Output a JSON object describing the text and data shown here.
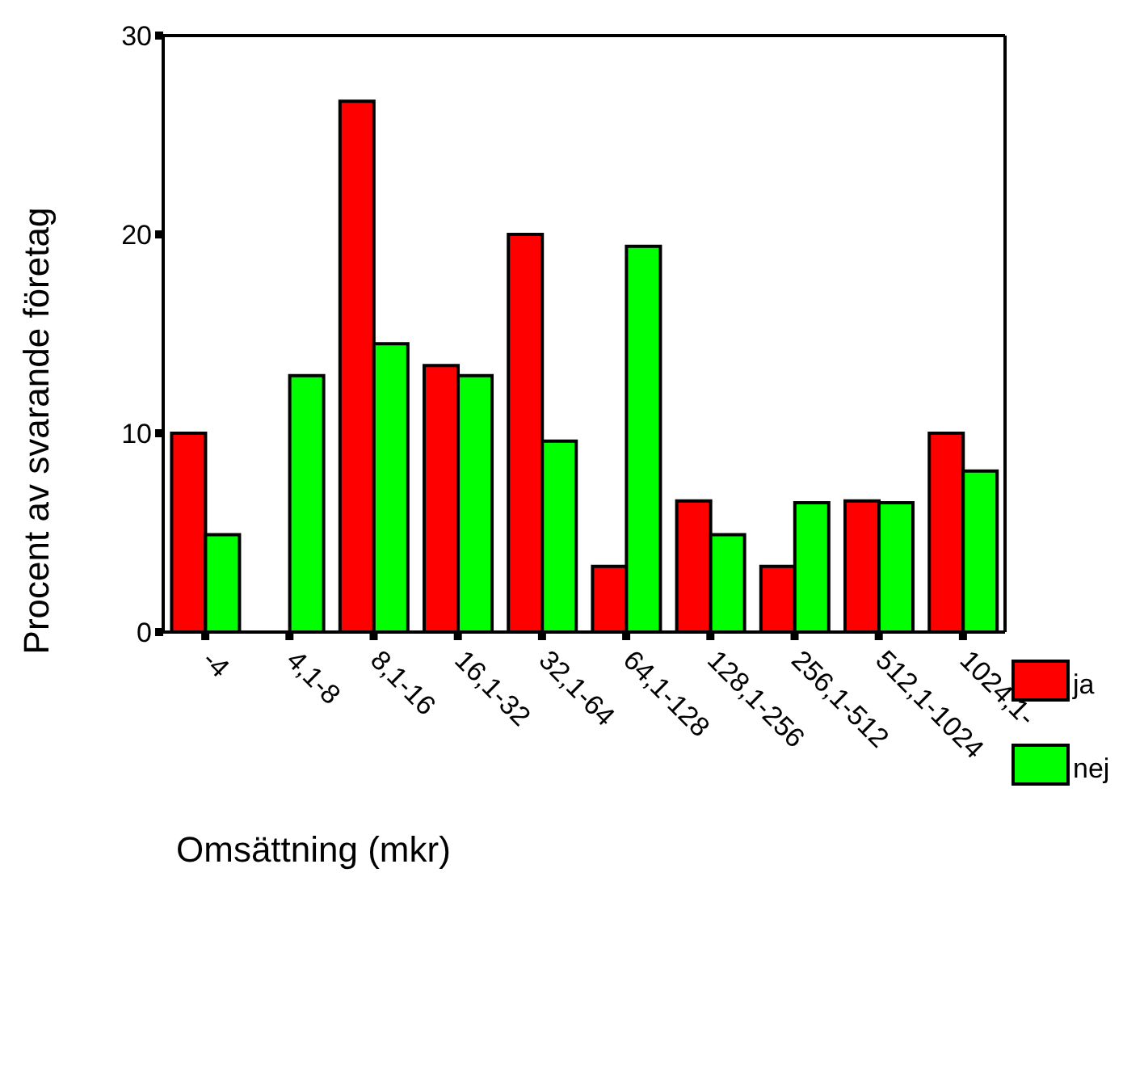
{
  "chart_data": {
    "type": "bar",
    "xlabel": "Omsättning (mkr)",
    "ylabel": "Procent av svarande företag",
    "categories": [
      "-4",
      "4,1-8",
      "8,1-16",
      "16,1-32",
      "32,1-64",
      "64,1-128",
      "128,1-256",
      "256,1-512",
      "512,1-1024",
      "1024,1-"
    ],
    "series": [
      {
        "name": "ja",
        "color": "#ff0000",
        "values": [
          10,
          0,
          26.7,
          13.4,
          20,
          3.3,
          6.6,
          3.3,
          6.6,
          10
        ]
      },
      {
        "name": "nej",
        "color": "#00ff00",
        "values": [
          4.9,
          12.9,
          14.5,
          12.9,
          9.6,
          19.4,
          4.9,
          6.5,
          6.5,
          8.1
        ]
      }
    ],
    "ylim": [
      0,
      30
    ],
    "yticks": [
      0,
      10,
      20,
      30
    ],
    "grid": false,
    "legend": "right"
  }
}
